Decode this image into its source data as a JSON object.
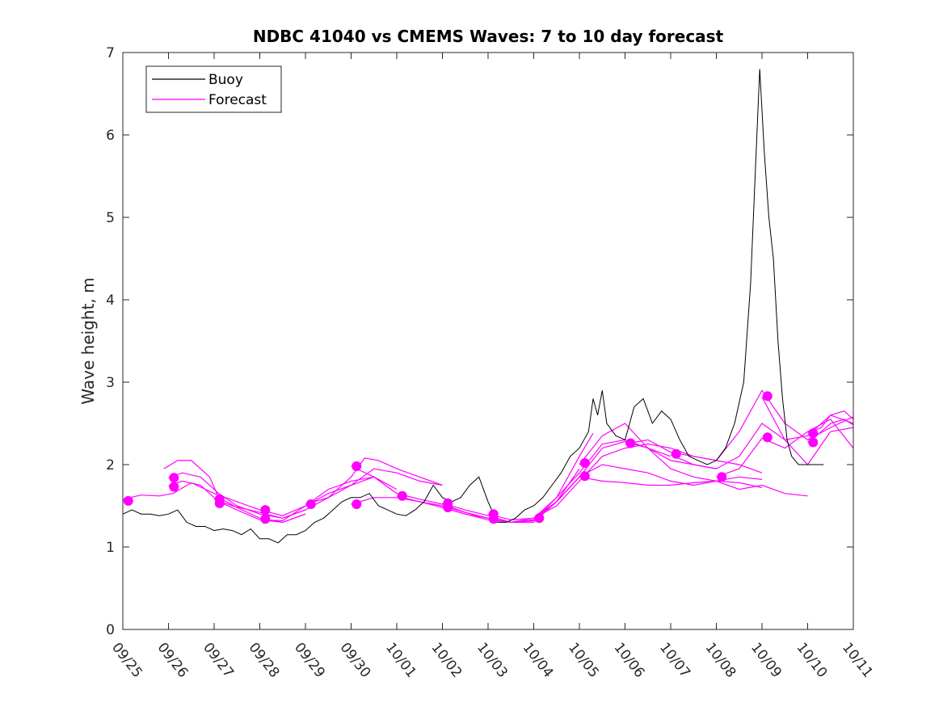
{
  "chart_data": {
    "type": "line",
    "title": "NDBC 41040 vs CMEMS Waves: 7 to 10 day forecast",
    "ylabel": "Wave height, m",
    "xlabel": "",
    "ylim": [
      0,
      7
    ],
    "yticks": [
      0,
      1,
      2,
      3,
      4,
      5,
      6,
      7
    ],
    "xlim": [
      0,
      16
    ],
    "xticks": [
      {
        "x": 0,
        "label": "09/25"
      },
      {
        "x": 1,
        "label": "09/26"
      },
      {
        "x": 2,
        "label": "09/27"
      },
      {
        "x": 3,
        "label": "09/28"
      },
      {
        "x": 4,
        "label": "09/29"
      },
      {
        "x": 5,
        "label": "09/30"
      },
      {
        "x": 6,
        "label": "10/01"
      },
      {
        "x": 7,
        "label": "10/02"
      },
      {
        "x": 8,
        "label": "10/03"
      },
      {
        "x": 9,
        "label": "10/04"
      },
      {
        "x": 10,
        "label": "10/05"
      },
      {
        "x": 11,
        "label": "10/06"
      },
      {
        "x": 12,
        "label": "10/07"
      },
      {
        "x": 13,
        "label": "10/08"
      },
      {
        "x": 14,
        "label": "10/09"
      },
      {
        "x": 15,
        "label": "10/10"
      },
      {
        "x": 16,
        "label": "10/11"
      }
    ],
    "grid": false,
    "legend_position": "top-left",
    "legend": [
      {
        "name": "Buoy",
        "color": "#000000"
      },
      {
        "name": "Forecast",
        "color": "#ff00ff"
      }
    ],
    "buoy": {
      "name": "Buoy",
      "color": "#000000",
      "x": [
        0.0,
        0.2,
        0.4,
        0.6,
        0.8,
        1.0,
        1.2,
        1.4,
        1.6,
        1.8,
        2.0,
        2.2,
        2.4,
        2.6,
        2.8,
        3.0,
        3.2,
        3.4,
        3.6,
        3.8,
        4.0,
        4.2,
        4.4,
        4.6,
        4.8,
        5.0,
        5.2,
        5.4,
        5.6,
        5.8,
        6.0,
        6.2,
        6.4,
        6.6,
        6.8,
        7.0,
        7.2,
        7.4,
        7.6,
        7.8,
        8.0,
        8.2,
        8.4,
        8.6,
        8.8,
        9.0,
        9.2,
        9.4,
        9.6,
        9.8,
        10.0,
        10.2,
        10.3,
        10.4,
        10.5,
        10.6,
        10.8,
        11.0,
        11.2,
        11.4,
        11.6,
        11.8,
        12.0,
        12.2,
        12.4,
        12.6,
        12.8,
        13.0,
        13.2,
        13.4,
        13.6,
        13.75,
        13.85,
        13.95,
        14.05,
        14.15,
        14.25,
        14.35,
        14.45,
        14.55,
        14.65,
        14.8,
        15.0,
        15.2,
        15.35
      ],
      "y": [
        1.4,
        1.45,
        1.4,
        1.4,
        1.38,
        1.4,
        1.45,
        1.3,
        1.25,
        1.25,
        1.2,
        1.22,
        1.2,
        1.15,
        1.22,
        1.1,
        1.1,
        1.05,
        1.15,
        1.15,
        1.2,
        1.3,
        1.35,
        1.45,
        1.55,
        1.6,
        1.6,
        1.65,
        1.5,
        1.45,
        1.4,
        1.38,
        1.45,
        1.55,
        1.75,
        1.6,
        1.55,
        1.6,
        1.75,
        1.85,
        1.55,
        1.3,
        1.3,
        1.35,
        1.45,
        1.5,
        1.6,
        1.75,
        1.9,
        2.1,
        2.2,
        2.4,
        2.8,
        2.6,
        2.9,
        2.5,
        2.35,
        2.3,
        2.7,
        2.8,
        2.5,
        2.65,
        2.55,
        2.3,
        2.1,
        2.05,
        2.0,
        2.05,
        2.2,
        2.5,
        3.0,
        4.2,
        5.5,
        6.8,
        5.8,
        5.0,
        4.5,
        3.5,
        2.8,
        2.3,
        2.1,
        2.0,
        2.0,
        2.0,
        2.0
      ]
    },
    "forecasts": [
      {
        "x": [
          0,
          0.4,
          0.8,
          1.1,
          1.5,
          2.0,
          2.5,
          3.0
        ],
        "y": [
          1.58,
          1.63,
          1.62,
          1.65,
          1.78,
          1.65,
          1.55,
          1.45
        ]
      },
      {
        "x": [
          1.0,
          1.3,
          1.7,
          2.1,
          2.5,
          3.0,
          3.5,
          4.0
        ],
        "y": [
          1.84,
          1.9,
          1.85,
          1.65,
          1.5,
          1.4,
          1.35,
          1.45
        ]
      },
      {
        "x": [
          1.0,
          1.3,
          1.7,
          2.1,
          2.5,
          3.0,
          3.5,
          4.0
        ],
        "y": [
          1.74,
          1.8,
          1.75,
          1.55,
          1.45,
          1.33,
          1.3,
          1.4
        ]
      },
      {
        "x": [
          0.9,
          1.2,
          1.5,
          1.9,
          2.1,
          2.5,
          3.0,
          3.5,
          4.0
        ],
        "y": [
          1.95,
          2.05,
          2.05,
          1.85,
          1.6,
          1.48,
          1.35,
          1.3,
          1.4
        ]
      },
      {
        "x": [
          2.0,
          2.4,
          3.0,
          3.5,
          4.0,
          4.5,
          5.0,
          5.5,
          6.0
        ],
        "y": [
          1.58,
          1.5,
          1.42,
          1.35,
          1.45,
          1.6,
          1.75,
          1.85,
          1.65
        ]
      },
      {
        "x": [
          3.0,
          3.5,
          4.0,
          4.5,
          5.0,
          5.5,
          6.0
        ],
        "y": [
          1.45,
          1.38,
          1.5,
          1.7,
          1.8,
          1.85,
          1.7
        ]
      },
      {
        "x": [
          3.0,
          3.5,
          4.0,
          4.5,
          5.0,
          5.5,
          6.0,
          6.5,
          7.0
        ],
        "y": [
          1.33,
          1.32,
          1.5,
          1.65,
          1.75,
          1.95,
          1.9,
          1.8,
          1.75
        ]
      },
      {
        "x": [
          4.0,
          4.5,
          5.0,
          5.3,
          5.6,
          6.0,
          6.5,
          7.0
        ],
        "y": [
          1.52,
          1.6,
          1.85,
          2.08,
          2.05,
          1.95,
          1.85,
          1.75
        ]
      },
      {
        "x": [
          5.0,
          5.5,
          6.0,
          6.5,
          7.0,
          7.5,
          8.0
        ],
        "y": [
          1.98,
          1.85,
          1.65,
          1.58,
          1.52,
          1.42,
          1.35
        ]
      },
      {
        "x": [
          5.0,
          5.5,
          6.0,
          6.5,
          7.0,
          7.5,
          8.0,
          8.5,
          9.0
        ],
        "y": [
          1.52,
          1.6,
          1.6,
          1.55,
          1.5,
          1.42,
          1.35,
          1.3,
          1.35
        ]
      },
      {
        "x": [
          6.0,
          6.5,
          7.0,
          7.5,
          8.0,
          8.5,
          9.0,
          9.5,
          10.0
        ],
        "y": [
          1.62,
          1.55,
          1.48,
          1.4,
          1.35,
          1.3,
          1.3,
          1.55,
          1.95
        ]
      },
      {
        "x": [
          7.0,
          7.5,
          8.0,
          8.5,
          9.0,
          9.5,
          10.0
        ],
        "y": [
          1.53,
          1.45,
          1.38,
          1.3,
          1.32,
          1.55,
          1.85
        ]
      },
      {
        "x": [
          7.0,
          7.5,
          8.0,
          8.5,
          9.0,
          9.5,
          10.0,
          10.3
        ],
        "y": [
          1.48,
          1.4,
          1.33,
          1.3,
          1.32,
          1.6,
          2.1,
          2.38
        ]
      },
      {
        "x": [
          8.0,
          8.5,
          9.0,
          9.5,
          10.0,
          10.5,
          11.0,
          11.5,
          12.0
        ],
        "y": [
          1.4,
          1.33,
          1.35,
          1.6,
          1.9,
          2.25,
          2.3,
          2.2,
          2.1
        ]
      },
      {
        "x": [
          8.0,
          8.5,
          9.0,
          9.5,
          10.0,
          10.5,
          11.0,
          11.5,
          12.0,
          12.5,
          13.0
        ],
        "y": [
          1.33,
          1.3,
          1.33,
          1.55,
          1.85,
          2.2,
          2.28,
          2.2,
          2.05,
          2.0,
          1.95
        ]
      },
      {
        "x": [
          9.0,
          9.5,
          10.0,
          10.5,
          11.0,
          11.5,
          12.0,
          12.5,
          13.0,
          13.5,
          14.0
        ],
        "y": [
          1.35,
          1.5,
          1.8,
          2.1,
          2.2,
          2.25,
          2.2,
          2.1,
          2.05,
          2.0,
          1.9
        ]
      },
      {
        "x": [
          9.0,
          9.5,
          10.0,
          10.5,
          11.0,
          11.5,
          12.0,
          12.5,
          13.0,
          13.5,
          14.0,
          14.5,
          15.0
        ],
        "y": [
          1.35,
          1.55,
          1.85,
          2.0,
          1.95,
          1.9,
          1.8,
          1.75,
          1.8,
          1.7,
          1.75,
          1.65,
          1.62
        ]
      },
      {
        "x": [
          10.0,
          10.5,
          11.0,
          11.5,
          12.0,
          12.5,
          13.0,
          13.5,
          14.0
        ],
        "y": [
          2.0,
          2.35,
          2.5,
          2.2,
          1.95,
          1.85,
          1.8,
          1.78,
          1.72
        ]
      },
      {
        "x": [
          10.0,
          10.5,
          11.0,
          11.5,
          12.0,
          12.5,
          13.0,
          13.5,
          14.0
        ],
        "y": [
          1.85,
          1.8,
          1.78,
          1.75,
          1.75,
          1.78,
          1.8,
          1.85,
          1.82
        ]
      },
      {
        "x": [
          11.0,
          11.5,
          12.0,
          12.5,
          13.0,
          13.5,
          14.0,
          14.5,
          15.0,
          15.5,
          16.0
        ],
        "y": [
          2.25,
          2.3,
          2.15,
          2.1,
          2.05,
          2.4,
          2.9,
          2.5,
          2.3,
          2.45,
          2.58
        ]
      },
      {
        "x": [
          12.0,
          12.5,
          13.0,
          13.5,
          14.0,
          14.5,
          15.0,
          15.5,
          16.0
        ],
        "y": [
          2.12,
          2.0,
          1.95,
          2.1,
          2.5,
          2.3,
          2.35,
          2.6,
          2.5
        ]
      },
      {
        "x": [
          13.0,
          13.5,
          14.0,
          14.5,
          15.0,
          15.5,
          16.0
        ],
        "y": [
          1.85,
          1.95,
          2.32,
          2.2,
          2.4,
          2.55,
          2.2
        ]
      },
      {
        "x": [
          14.0,
          14.5,
          15.0,
          15.5,
          16.0
        ],
        "y": [
          2.82,
          2.3,
          2.0,
          2.4,
          2.45
        ]
      },
      {
        "x": [
          15.0,
          15.3,
          15.5,
          15.8,
          16.0
        ],
        "y": [
          2.38,
          2.45,
          2.6,
          2.65,
          2.55
        ]
      },
      {
        "x": [
          15.0,
          15.3,
          15.5,
          15.8,
          16.0
        ],
        "y": [
          2.27,
          2.4,
          2.5,
          2.55,
          2.48
        ]
      }
    ],
    "markers": {
      "color": "#ff00ff",
      "x": [
        0.12,
        1.12,
        1.12,
        2.12,
        2.12,
        3.12,
        3.12,
        4.12,
        5.12,
        5.12,
        6.12,
        7.12,
        7.12,
        8.12,
        8.12,
        9.12,
        10.12,
        10.12,
        11.12,
        12.12,
        13.12,
        14.12,
        14.12,
        15.12,
        15.12
      ],
      "y": [
        1.56,
        1.84,
        1.73,
        1.58,
        1.53,
        1.45,
        1.34,
        1.52,
        1.98,
        1.52,
        1.62,
        1.53,
        1.48,
        1.4,
        1.34,
        1.35,
        2.02,
        1.86,
        2.26,
        2.13,
        1.85,
        2.83,
        2.33,
        2.38,
        2.27
      ]
    }
  }
}
